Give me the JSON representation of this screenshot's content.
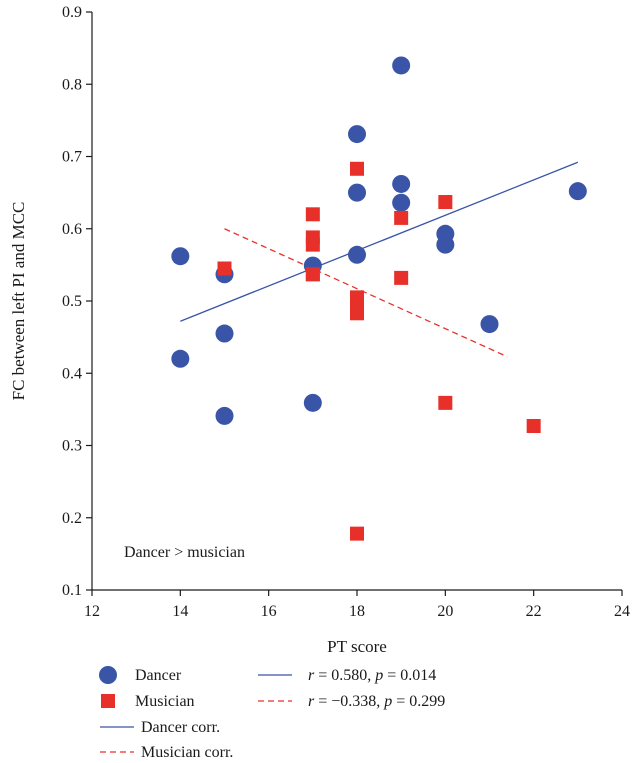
{
  "chart_data": {
    "type": "scatter",
    "xlabel": "PT score",
    "ylabel": "FC between left PI and MCC",
    "xlim": [
      12,
      24
    ],
    "ylim": [
      0.1,
      0.9
    ],
    "xticks": [
      "12",
      "14",
      "16",
      "18",
      "20",
      "22",
      "24"
    ],
    "yticks": [
      "0.1",
      "0.2",
      "0.3",
      "0.4",
      "0.5",
      "0.6",
      "0.7",
      "0.8",
      "0.9"
    ],
    "annotation": "Dancer > musician",
    "grid": false,
    "series": [
      {
        "name": "Dancer",
        "marker": "circle",
        "color": "#3a55a8",
        "x": [
          14,
          14,
          15,
          15,
          15,
          17,
          17,
          18,
          18,
          18,
          19,
          19,
          19,
          20,
          20,
          21,
          23
        ],
        "y": [
          0.562,
          0.42,
          0.537,
          0.455,
          0.341,
          0.549,
          0.359,
          0.731,
          0.65,
          0.564,
          0.826,
          0.662,
          0.636,
          0.593,
          0.578,
          0.468,
          0.652
        ]
      },
      {
        "name": "Musician",
        "marker": "square",
        "color": "#e8302a",
        "x": [
          15,
          17,
          17,
          17,
          17,
          17,
          18,
          18,
          18,
          18,
          18,
          19,
          19,
          20,
          20,
          22
        ],
        "y": [
          0.545,
          0.62,
          0.588,
          0.578,
          0.537,
          0.537,
          0.683,
          0.505,
          0.495,
          0.483,
          0.178,
          0.615,
          0.532,
          0.637,
          0.359,
          0.327
        ]
      }
    ],
    "fits": [
      {
        "name": "Dancer corr.",
        "style": "solid",
        "color": "#3a55a8",
        "x": [
          14,
          23
        ],
        "y": [
          0.472,
          0.692
        ],
        "stat": "r = 0.580, p = 0.014"
      },
      {
        "name": "Musician corr.",
        "style": "dashed",
        "color": "#e8302a",
        "x": [
          15,
          21.4
        ],
        "y": [
          0.6,
          0.423
        ],
        "stat": "r = −0.338, p = 0.299"
      }
    ],
    "legend": {
      "placement": "bottom",
      "items": [
        {
          "label": "Dancer",
          "symbol": "circle",
          "color": "#3a55a8"
        },
        {
          "label": "Musician",
          "symbol": "square",
          "color": "#e8302a"
        },
        {
          "label": "Dancer corr.",
          "symbol": "solid-line",
          "color": "#3a55a8"
        },
        {
          "label": "Musician corr.",
          "symbol": "dashed-line",
          "color": "#e8302a"
        }
      ],
      "stats": [
        {
          "symbol": "solid-line",
          "color": "#3a55a8",
          "r_label": "r",
          "r_value": " = 0.580, ",
          "p_label": "p",
          "p_value": " = 0.014"
        },
        {
          "symbol": "dashed-line",
          "color": "#e8302a",
          "r_label": "r",
          "r_value": " = −0.338, ",
          "p_label": "p",
          "p_value": " = 0.299"
        }
      ]
    }
  }
}
